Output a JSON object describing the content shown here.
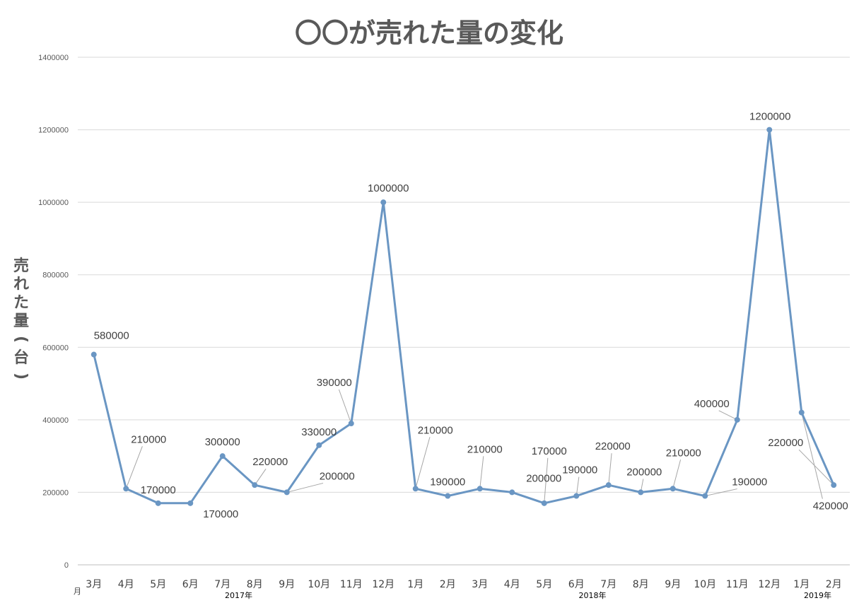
{
  "chart_data": {
    "type": "line",
    "title": "〇〇が売れた量の変化",
    "ylabel": "売れた量(台)",
    "x_unit_label": "月",
    "ylim": [
      0,
      1400000
    ],
    "yticks": [
      0,
      200000,
      400000,
      600000,
      800000,
      1000000,
      1200000,
      1400000
    ],
    "grid": true,
    "legend": "none",
    "line_color": "#6a96c3",
    "categories": [
      "3月",
      "4月",
      "5月",
      "6月",
      "7月",
      "8月",
      "9月",
      "10月",
      "11月",
      "12月",
      "1月",
      "2月",
      "3月",
      "4月",
      "5月",
      "6月",
      "7月",
      "8月",
      "9月",
      "10月",
      "11月",
      "12月",
      "1月",
      "2月"
    ],
    "year_groups": [
      {
        "label": "2017年",
        "start": 0,
        "end": 9
      },
      {
        "label": "2018年",
        "start": 10,
        "end": 21
      },
      {
        "label": "2019年",
        "start": 22,
        "end": 23
      }
    ],
    "series": [
      {
        "values": [
          580000,
          210000,
          170000,
          170000,
          300000,
          220000,
          200000,
          330000,
          390000,
          1000000,
          210000,
          190000,
          210000,
          200000,
          170000,
          190000,
          220000,
          200000,
          210000,
          190000,
          400000,
          1200000,
          420000,
          220000
        ]
      }
    ]
  }
}
